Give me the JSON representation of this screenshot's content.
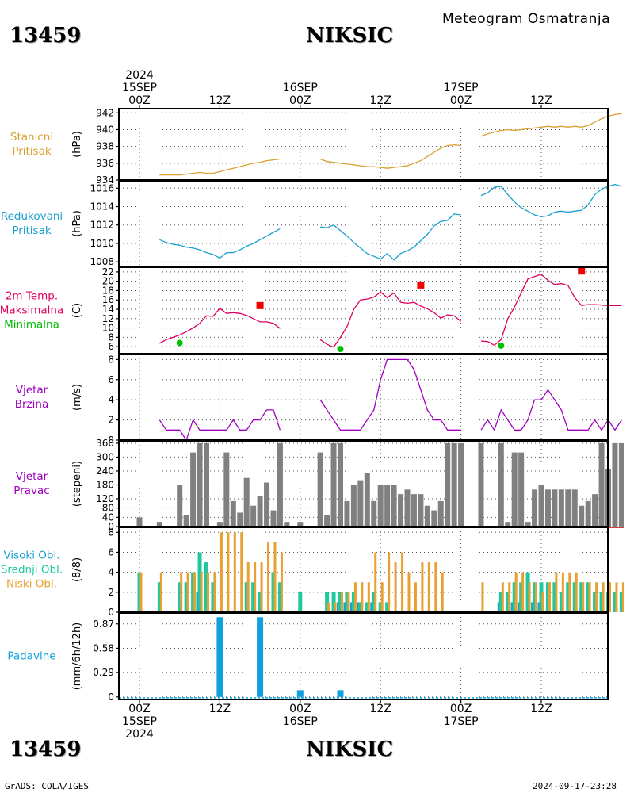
{
  "header": {
    "station_id": "13459",
    "station_name": "NIKSIC",
    "product": "Meteogram Osmatranja"
  },
  "footer": {
    "station_id": "13459",
    "station_name": "NIKSIC",
    "credit": "GrADS: COLA/IGES",
    "timestamp": "2024-09-17-23:28"
  },
  "time_axis": {
    "hours": [
      0,
      72
    ],
    "ticks": [
      {
        "h": 0,
        "top": [
          "2024",
          "15SEP",
          "00Z"
        ],
        "bottom": [
          "00Z",
          "15SEP",
          "2024"
        ]
      },
      {
        "h": 12,
        "top": [
          "12Z"
        ],
        "bottom": [
          "12Z"
        ]
      },
      {
        "h": 24,
        "top": [
          "16SEP",
          "00Z"
        ],
        "bottom": [
          "00Z",
          "16SEP"
        ]
      },
      {
        "h": 36,
        "top": [
          "12Z"
        ],
        "bottom": [
          "12Z"
        ]
      },
      {
        "h": 48,
        "top": [
          "17SEP",
          "00Z"
        ],
        "bottom": [
          "00Z",
          "17SEP"
        ]
      },
      {
        "h": 60,
        "top": [
          "12Z"
        ],
        "bottom": [
          "12Z"
        ]
      }
    ]
  },
  "colors": {
    "pressure": "#daa030",
    "reduced": "#1aa0d0",
    "tmax": "#e00060",
    "tmax_marker": "#f00000",
    "tmin_marker": "#00c000",
    "wind": "#a000c0",
    "direction": "#808080",
    "high_cloud": "#1aa0d0",
    "mid_cloud": "#20c8a0",
    "low_cloud": "#e8a030",
    "precip": "#10a0e0"
  },
  "chart_data": [
    {
      "id": "station_pressure",
      "type": "line",
      "label_lines": [
        "Stanicni",
        "Pritisak"
      ],
      "label_color": "#daa030",
      "ylabel": "(hPa)",
      "ylim": [
        934,
        942.5
      ],
      "yticks": [
        934,
        936,
        938,
        940,
        942
      ],
      "series": [
        {
          "x": [
            3,
            4,
            5,
            6,
            7,
            8,
            9,
            10,
            11,
            12,
            13,
            14,
            15,
            16,
            17,
            18,
            19,
            20,
            21
          ],
          "y": [
            934.6,
            934.6,
            934.6,
            934.6,
            934.7,
            934.8,
            934.9,
            934.8,
            934.8,
            935.0,
            935.2,
            935.4,
            935.6,
            935.8,
            936.0,
            936.1,
            936.3,
            936.4,
            936.5
          ]
        },
        {
          "x": [
            27,
            28,
            29,
            30,
            31,
            32,
            33,
            34,
            35,
            36,
            37,
            38,
            39,
            40,
            41,
            42,
            43,
            44,
            45,
            46,
            47,
            48
          ],
          "y": [
            936.5,
            936.2,
            936.1,
            936.0,
            935.9,
            935.8,
            935.7,
            935.6,
            935.6,
            935.5,
            935.4,
            935.5,
            935.6,
            935.7,
            936.0,
            936.3,
            936.8,
            937.3,
            937.8,
            938.1,
            938.2,
            938.1
          ]
        },
        {
          "x": [
            51,
            52,
            53,
            54,
            55,
            56,
            57,
            58,
            59,
            60,
            61,
            62,
            63,
            64,
            65,
            66,
            67,
            68,
            69,
            70,
            71,
            72
          ],
          "y": [
            939.2,
            939.5,
            939.7,
            939.9,
            940.0,
            939.9,
            940.0,
            940.1,
            940.2,
            940.3,
            940.4,
            940.3,
            940.4,
            940.3,
            940.4,
            940.3,
            940.5,
            940.9,
            941.3,
            941.6,
            941.8,
            941.9
          ]
        }
      ]
    },
    {
      "id": "reduced_pressure",
      "type": "line",
      "label_lines": [
        "Redukovani",
        "Pritisak"
      ],
      "label_color": "#1aa0d0",
      "ylabel": "(hPa)",
      "ylim": [
        1007.5,
        1016.8
      ],
      "yticks": [
        1008,
        1010,
        1012,
        1014,
        1016
      ],
      "series": [
        {
          "x": [
            3,
            4,
            5,
            6,
            7,
            8,
            9,
            10,
            11,
            12,
            13,
            14,
            15,
            16,
            17,
            18,
            19,
            20,
            21
          ],
          "y": [
            1010.4,
            1010.1,
            1009.9,
            1009.8,
            1009.6,
            1009.5,
            1009.3,
            1009.0,
            1008.8,
            1008.4,
            1009.0,
            1009.0,
            1009.3,
            1009.7,
            1010.0,
            1010.4,
            1010.8,
            1011.2,
            1011.6
          ]
        },
        {
          "x": [
            27,
            28,
            29,
            30,
            31,
            32,
            33,
            34,
            35,
            36,
            37,
            38,
            39,
            40,
            41,
            42,
            43,
            44,
            45,
            46,
            47,
            48
          ],
          "y": [
            1011.8,
            1011.7,
            1012.0,
            1011.4,
            1010.8,
            1010.1,
            1009.5,
            1008.9,
            1008.6,
            1008.3,
            1008.9,
            1008.2,
            1008.9,
            1009.2,
            1009.6,
            1010.3,
            1011.0,
            1011.9,
            1012.4,
            1012.5,
            1013.2,
            1013.1
          ]
        },
        {
          "x": [
            51,
            52,
            53,
            54,
            55,
            56,
            57,
            58,
            59,
            60,
            61,
            62,
            63,
            64,
            65,
            66,
            67,
            68,
            69,
            70,
            71,
            72
          ],
          "y": [
            1015.2,
            1015.5,
            1016.1,
            1016.2,
            1015.3,
            1014.5,
            1013.9,
            1013.5,
            1013.1,
            1012.9,
            1013.0,
            1013.4,
            1013.5,
            1013.4,
            1013.5,
            1013.6,
            1014.2,
            1015.3,
            1015.9,
            1016.2,
            1016.4,
            1016.2
          ]
        }
      ]
    },
    {
      "id": "temperature",
      "type": "line",
      "label_lines": [
        "2m Temp.",
        "Maksimalna",
        "Minimalna"
      ],
      "label_colors": [
        "#e00060",
        "#e00060",
        "#00c000"
      ],
      "ylabel": "(C)",
      "ylim": [
        4.5,
        23
      ],
      "yticks": [
        6,
        8,
        10,
        12,
        14,
        16,
        18,
        20,
        22
      ],
      "series": [
        {
          "x": [
            3,
            4,
            5,
            6,
            7,
            8,
            9,
            10,
            11,
            12,
            13,
            14,
            15,
            16,
            17,
            18,
            19,
            20,
            21
          ],
          "y": [
            6.7,
            7.5,
            8.0,
            8.5,
            9.2,
            10.0,
            11.0,
            12.6,
            12.5,
            14.2,
            13.1,
            13.3,
            13.1,
            12.7,
            12.0,
            11.3,
            11.3,
            11.0,
            9.9
          ]
        },
        {
          "x": [
            27,
            28,
            29,
            30,
            31,
            32,
            33,
            34,
            35,
            36,
            37,
            38,
            39,
            40,
            41,
            42,
            43,
            44,
            45,
            46,
            47,
            48
          ],
          "y": [
            7.5,
            6.5,
            5.9,
            8.0,
            10.3,
            14.0,
            16.0,
            16.2,
            16.6,
            17.7,
            16.5,
            17.5,
            15.5,
            15.3,
            15.5,
            14.7,
            14.1,
            13.3,
            12.1,
            12.8,
            12.6,
            11.4
          ]
        },
        {
          "x": [
            51,
            52,
            53,
            54,
            55,
            56,
            57,
            58,
            59,
            60,
            61,
            62,
            63,
            64,
            65,
            66,
            67,
            68,
            69,
            70,
            71,
            72
          ],
          "y": [
            7.2,
            7.1,
            6.3,
            7.5,
            12.0,
            14.5,
            17.5,
            20.5,
            21.0,
            21.5,
            20.2,
            19.3,
            19.5,
            19.1,
            16.5,
            14.8,
            15.0,
            15.0,
            14.9,
            14.8,
            14.8,
            14.8
          ]
        }
      ],
      "max_markers": [
        {
          "x": 18,
          "y": 14.8
        },
        {
          "x": 42,
          "y": 19.2
        },
        {
          "x": 66,
          "y": 22.2
        }
      ],
      "min_markers": [
        {
          "x": 6,
          "y": 6.8
        },
        {
          "x": 30,
          "y": 5.5
        },
        {
          "x": 54,
          "y": 6.2
        }
      ]
    },
    {
      "id": "wind_speed",
      "type": "line",
      "label_lines": [
        "Vjetar",
        "Brzina"
      ],
      "label_color": "#a000c0",
      "ylabel": "(m/s)",
      "ylim": [
        0,
        8.5
      ],
      "yticks": [
        0,
        2,
        4,
        6,
        8
      ],
      "series": [
        {
          "x": [
            3,
            4,
            5,
            6,
            7,
            8,
            9,
            10,
            11,
            12,
            13,
            14,
            15,
            16,
            17,
            18,
            19,
            20,
            21
          ],
          "y": [
            2,
            1,
            1,
            1,
            0,
            2,
            1,
            1,
            1,
            1,
            1,
            2,
            1,
            1,
            2,
            2,
            3,
            3,
            1
          ]
        },
        {
          "x": [
            27,
            28,
            29,
            30,
            31,
            32,
            33,
            34,
            35,
            36,
            37,
            38,
            39,
            40,
            41,
            42,
            43,
            44,
            45,
            46,
            47,
            48
          ],
          "y": [
            4,
            3,
            2,
            1,
            1,
            1,
            1,
            2,
            3,
            6,
            8,
            8,
            8,
            8,
            7,
            5,
            3,
            2,
            2,
            1,
            1,
            1
          ]
        },
        {
          "x": [
            51,
            52,
            53,
            54,
            55,
            56,
            57,
            58,
            59,
            60,
            61,
            62,
            63,
            64,
            65,
            66,
            67,
            68,
            69,
            70,
            71,
            72
          ],
          "y": [
            1,
            2,
            1,
            3,
            2,
            1,
            1,
            2,
            4,
            4,
            5,
            4,
            3,
            1,
            1,
            1,
            1,
            2,
            1,
            2,
            1,
            2
          ]
        }
      ]
    },
    {
      "id": "wind_direction",
      "type": "bar",
      "label_lines": [
        "Vjetar",
        "Pravac"
      ],
      "label_color": "#a000c0",
      "ylabel": "(stepeni)",
      "ylim": [
        0,
        370
      ],
      "yticks": [
        0,
        40,
        80,
        120,
        180,
        240,
        300,
        360
      ],
      "x": [
        0,
        3,
        6,
        7,
        8,
        9,
        10,
        11,
        12,
        13,
        14,
        15,
        16,
        17,
        18,
        19,
        20,
        21,
        22,
        24,
        27,
        28,
        29,
        30,
        31,
        32,
        33,
        34,
        35,
        36,
        37,
        38,
        39,
        40,
        41,
        42,
        43,
        44,
        45,
        46,
        47,
        48,
        51,
        54,
        55,
        56,
        57,
        58,
        59,
        60,
        61,
        62,
        63,
        64,
        65,
        66,
        67,
        68,
        69,
        70,
        71,
        72
      ],
      "values": [
        40,
        20,
        180,
        50,
        320,
        360,
        360,
        0,
        20,
        320,
        110,
        60,
        210,
        90,
        130,
        190,
        70,
        360,
        20,
        20,
        320,
        50,
        360,
        360,
        110,
        180,
        200,
        230,
        110,
        180,
        180,
        180,
        140,
        160,
        140,
        140,
        90,
        70,
        110,
        360,
        360,
        360,
        360,
        360,
        20,
        320,
        320,
        20,
        160,
        180,
        160,
        160,
        160,
        160,
        160,
        90,
        110,
        140,
        360,
        250,
        360,
        360
      ]
    },
    {
      "id": "clouds",
      "type": "bar",
      "label_lines": [
        "Visoki Obl.",
        "Srednji Obl.",
        "Niski Obl."
      ],
      "label_colors": [
        "#1aa0d0",
        "#20c8a0",
        "#e8a030"
      ],
      "ylabel": "(8/8)",
      "ylim": [
        0,
        8.5
      ],
      "yticks": [
        0,
        2,
        4,
        6,
        8
      ],
      "x": [
        0,
        3,
        6,
        7,
        8,
        9,
        10,
        11,
        12,
        13,
        14,
        15,
        16,
        17,
        18,
        19,
        20,
        21,
        24,
        27,
        28,
        29,
        30,
        31,
        32,
        33,
        34,
        35,
        36,
        37,
        38,
        39,
        40,
        41,
        42,
        43,
        44,
        45,
        46,
        47,
        48,
        51,
        54,
        55,
        56,
        57,
        58,
        59,
        60,
        61,
        62,
        63,
        64,
        65,
        66,
        67,
        68,
        69,
        70,
        71,
        72
      ],
      "series": [
        {
          "name": "Visoki Obl.",
          "values": [
            0,
            0,
            0,
            0,
            0,
            2,
            0,
            0,
            0,
            0,
            0,
            0,
            0,
            0,
            0,
            0,
            0,
            0,
            0,
            0,
            0,
            0,
            1,
            1,
            1,
            1,
            0,
            1,
            0,
            0,
            0,
            0,
            0,
            0,
            0,
            0,
            0,
            0,
            0,
            0,
            0,
            0,
            1,
            0,
            1,
            1,
            0,
            1,
            1,
            0,
            0,
            0,
            0,
            0,
            0,
            0,
            0,
            0,
            0,
            0,
            0
          ]
        },
        {
          "name": "Srednji Obl.",
          "values": [
            4,
            3,
            3,
            3,
            4,
            6,
            5,
            3,
            0,
            0,
            0,
            0,
            3,
            3,
            2,
            0,
            4,
            3,
            2,
            0,
            2,
            2,
            2,
            2,
            2,
            1,
            1,
            2,
            1,
            1,
            0,
            0,
            0,
            0,
            0,
            0,
            0,
            0,
            0,
            0,
            0,
            0,
            2,
            2,
            3,
            3,
            4,
            3,
            3,
            3,
            3,
            2,
            3,
            3,
            3,
            3,
            2,
            2,
            2,
            2,
            2
          ]
        },
        {
          "name": "Niski Obl.",
          "values": [
            4,
            4,
            4,
            4,
            4,
            4,
            4,
            4,
            8,
            8,
            8,
            8,
            5,
            5,
            5,
            7,
            7,
            6,
            0,
            0,
            1,
            1,
            2,
            2,
            3,
            3,
            3,
            6,
            3,
            6,
            5,
            6,
            4,
            3,
            5,
            5,
            5,
            4,
            0,
            0,
            0,
            3,
            3,
            3,
            4,
            4,
            3,
            3,
            2,
            3,
            4,
            4,
            4,
            4,
            3,
            3,
            3,
            3,
            3,
            3,
            3
          ]
        }
      ]
    },
    {
      "id": "precipitation",
      "type": "bar",
      "label_lines": [
        "Padavine"
      ],
      "label_color": "#10a0e0",
      "ylabel": "(mm/6h/12h)",
      "ylim": [
        -0.03,
        1.0
      ],
      "yticks": [
        0,
        0.29,
        0.58,
        0.87
      ],
      "x": [
        12,
        18,
        24,
        30
      ],
      "values": [
        0.95,
        0.95,
        0.08,
        0.08
      ]
    }
  ]
}
